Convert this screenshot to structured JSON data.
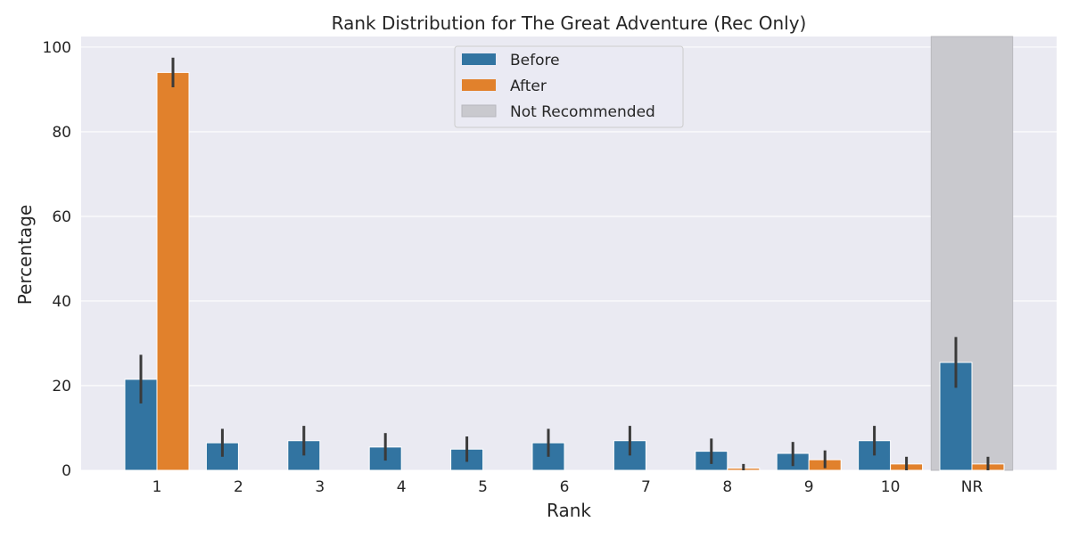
{
  "chart_data": {
    "type": "bar",
    "title": "Rank Distribution for The Great Adventure (Rec Only)",
    "xlabel": "Rank",
    "ylabel": "Percentage",
    "categories": [
      "1",
      "2",
      "3",
      "4",
      "5",
      "6",
      "7",
      "8",
      "9",
      "10",
      "NR"
    ],
    "ylim": [
      0,
      102.5
    ],
    "yticks": [
      0,
      20,
      40,
      60,
      80,
      100
    ],
    "series": [
      {
        "name": "Before",
        "color": "#3274a1",
        "values": [
          21.5,
          6.5,
          7.0,
          5.5,
          5.0,
          6.5,
          7.0,
          4.5,
          4.0,
          7.0,
          25.5
        ],
        "err_low": [
          15.8,
          3.2,
          3.5,
          2.3,
          2.0,
          3.2,
          3.5,
          1.5,
          1.0,
          3.5,
          19.5
        ],
        "err_high": [
          27.3,
          9.8,
          10.5,
          8.8,
          8.0,
          9.8,
          10.5,
          7.5,
          6.7,
          10.5,
          31.5
        ]
      },
      {
        "name": "After",
        "color": "#e1812c",
        "values": [
          94.0,
          0,
          0,
          0,
          0,
          0,
          0,
          0.5,
          2.5,
          1.5,
          1.5
        ],
        "err_low": [
          90.5,
          null,
          null,
          null,
          null,
          null,
          null,
          0,
          0.5,
          0,
          0
        ],
        "err_high": [
          97.5,
          null,
          null,
          null,
          null,
          null,
          null,
          1.5,
          4.7,
          3.2,
          3.2
        ]
      }
    ],
    "shaded_region": {
      "category": "NR",
      "label": "Not Recommended",
      "color": "#c9c9ce"
    },
    "legend": {
      "placement": "top-center",
      "entries": [
        "Before",
        "After",
        "Not Recommended"
      ]
    },
    "grid": true,
    "background_color": "#eaeaf2",
    "errorbar_color": "#3a3a3a"
  }
}
